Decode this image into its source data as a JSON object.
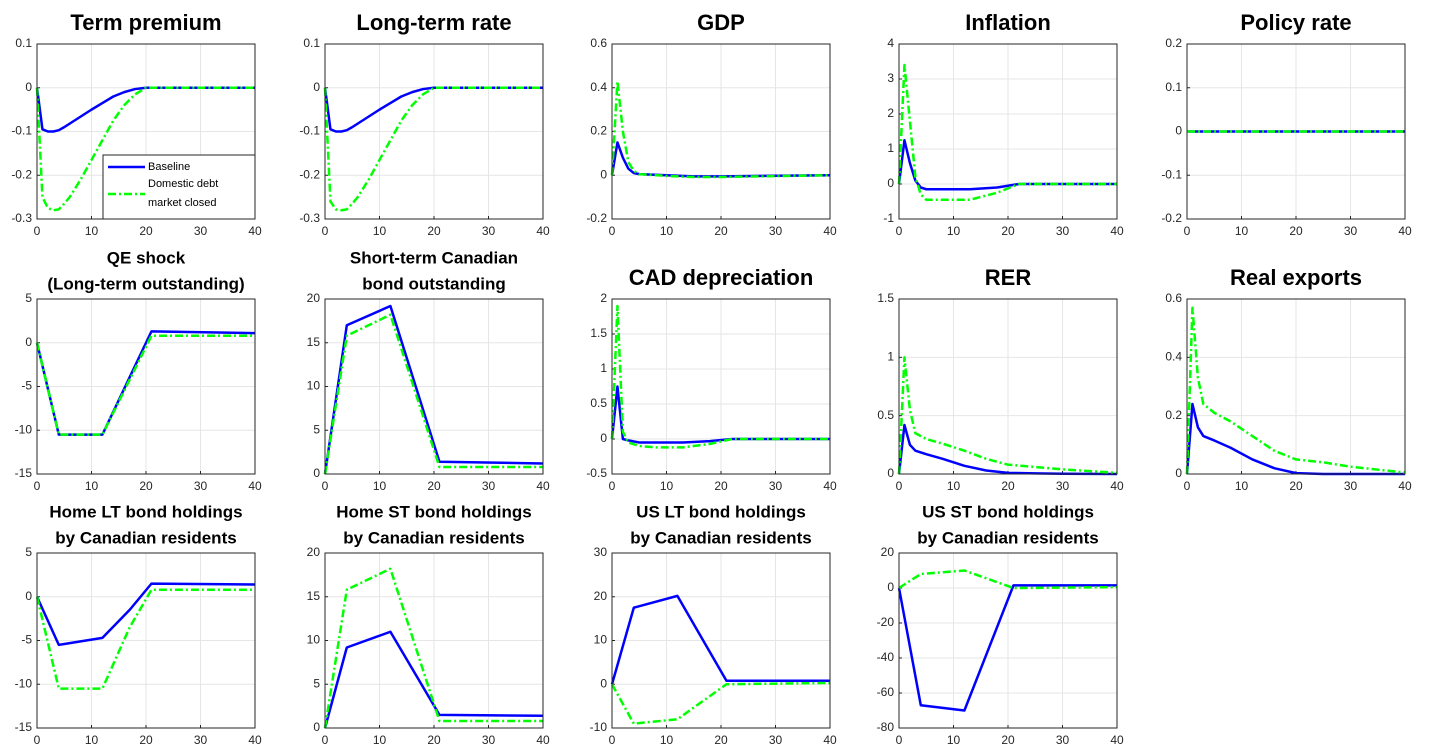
{
  "chart_data": [
    {
      "type": "line",
      "title": [
        "Term premium"
      ],
      "x": [
        0,
        1,
        2,
        3,
        4,
        5,
        6,
        8,
        10,
        12,
        14,
        16,
        18,
        20,
        40
      ],
      "xlim": [
        0,
        40
      ],
      "xticks": [
        0,
        10,
        20,
        30,
        40
      ],
      "ylim": [
        -0.3,
        0.1
      ],
      "yticks": [
        -0.3,
        -0.2,
        -0.1,
        0,
        0.1
      ],
      "grid": true,
      "legend": "lower right",
      "series": [
        {
          "name": "Baseline",
          "color": "#0000ff",
          "style": "solid",
          "values": [
            0,
            -0.095,
            -0.1,
            -0.1,
            -0.097,
            -0.09,
            -0.082,
            -0.066,
            -0.05,
            -0.035,
            -0.02,
            -0.01,
            -0.003,
            0,
            0
          ]
        },
        {
          "name": "Domestic debt market closed",
          "color": "#00ff00",
          "style": "dashdot",
          "values": [
            0,
            -0.25,
            -0.275,
            -0.28,
            -0.278,
            -0.265,
            -0.25,
            -0.21,
            -0.165,
            -0.12,
            -0.075,
            -0.04,
            -0.015,
            0,
            0
          ]
        }
      ]
    },
    {
      "type": "line",
      "title": [
        "Long-term rate"
      ],
      "x": [
        0,
        1,
        2,
        3,
        4,
        5,
        6,
        8,
        10,
        12,
        14,
        16,
        18,
        20,
        40
      ],
      "xlim": [
        0,
        40
      ],
      "xticks": [
        0,
        10,
        20,
        30,
        40
      ],
      "ylim": [
        -0.3,
        0.1
      ],
      "yticks": [
        -0.3,
        -0.2,
        -0.1,
        0,
        0.1
      ],
      "grid": true,
      "series": [
        {
          "color": "#0000ff",
          "style": "solid",
          "values": [
            0,
            -0.095,
            -0.1,
            -0.1,
            -0.097,
            -0.09,
            -0.082,
            -0.066,
            -0.05,
            -0.035,
            -0.02,
            -0.01,
            -0.003,
            0,
            0
          ]
        },
        {
          "color": "#00ff00",
          "style": "dashdot",
          "values": [
            0,
            -0.26,
            -0.278,
            -0.28,
            -0.278,
            -0.265,
            -0.25,
            -0.21,
            -0.165,
            -0.12,
            -0.075,
            -0.04,
            -0.015,
            0,
            0
          ]
        }
      ]
    },
    {
      "type": "line",
      "title": [
        "GDP"
      ],
      "x": [
        0,
        1,
        2,
        3,
        4,
        5,
        10,
        15,
        20,
        40
      ],
      "xlim": [
        0,
        40
      ],
      "xticks": [
        0,
        10,
        20,
        30,
        40
      ],
      "ylim": [
        -0.2,
        0.6
      ],
      "yticks": [
        -0.2,
        0,
        0.2,
        0.4,
        0.6
      ],
      "grid": true,
      "series": [
        {
          "color": "#0000ff",
          "style": "solid",
          "values": [
            0,
            0.15,
            0.08,
            0.03,
            0.01,
            0.005,
            0,
            -0.005,
            -0.005,
            0
          ]
        },
        {
          "color": "#00ff00",
          "style": "dashdot",
          "values": [
            0,
            0.43,
            0.2,
            0.06,
            0.02,
            0.005,
            -0.003,
            -0.008,
            -0.008,
            0
          ]
        }
      ]
    },
    {
      "type": "line",
      "title": [
        "Inflation"
      ],
      "x": [
        0,
        1,
        2,
        3,
        4,
        5,
        8,
        13,
        18,
        22,
        40
      ],
      "xlim": [
        0,
        40
      ],
      "xticks": [
        0,
        10,
        20,
        30,
        40
      ],
      "ylim": [
        -1,
        4
      ],
      "yticks": [
        -1,
        0,
        1,
        2,
        3,
        4
      ],
      "grid": true,
      "series": [
        {
          "color": "#0000ff",
          "style": "solid",
          "values": [
            0,
            1.25,
            0.6,
            0.1,
            -0.1,
            -0.15,
            -0.15,
            -0.15,
            -0.1,
            0,
            0
          ]
        },
        {
          "color": "#00ff00",
          "style": "dashdot",
          "values": [
            0,
            3.4,
            1.8,
            0.2,
            -0.3,
            -0.45,
            -0.45,
            -0.45,
            -0.25,
            0,
            0
          ]
        }
      ]
    },
    {
      "type": "line",
      "title": [
        "Policy rate"
      ],
      "x": [
        0,
        40
      ],
      "xlim": [
        0,
        40
      ],
      "xticks": [
        0,
        10,
        20,
        30,
        40
      ],
      "ylim": [
        -0.2,
        0.2
      ],
      "yticks": [
        -0.2,
        -0.1,
        0,
        0.1,
        0.2
      ],
      "grid": true,
      "series": [
        {
          "color": "#0000ff",
          "style": "solid",
          "values": [
            0,
            0
          ]
        },
        {
          "color": "#00ff00",
          "style": "dashdot",
          "values": [
            0,
            0
          ]
        }
      ]
    },
    {
      "type": "line",
      "title": [
        "QE shock",
        "(Long-term outstanding)"
      ],
      "x": [
        0,
        4,
        12,
        21,
        40
      ],
      "xlim": [
        0,
        40
      ],
      "xticks": [
        0,
        10,
        20,
        30,
        40
      ],
      "ylim": [
        -15,
        5
      ],
      "yticks": [
        -15,
        -10,
        -5,
        0,
        5
      ],
      "grid": true,
      "series": [
        {
          "color": "#0000ff",
          "style": "solid",
          "values": [
            0,
            -10.5,
            -10.5,
            1.3,
            1.1
          ]
        },
        {
          "color": "#00ff00",
          "style": "dashdot",
          "values": [
            0,
            -10.5,
            -10.5,
            0.8,
            0.8
          ]
        }
      ]
    },
    {
      "type": "line",
      "title": [
        "Short-term Canadian",
        "bond outstanding"
      ],
      "x": [
        0,
        4,
        12,
        21,
        40
      ],
      "xlim": [
        0,
        40
      ],
      "xticks": [
        0,
        10,
        20,
        30,
        40
      ],
      "ylim": [
        0,
        20
      ],
      "yticks": [
        0,
        5,
        10,
        15,
        20
      ],
      "grid": true,
      "series": [
        {
          "color": "#0000ff",
          "style": "solid",
          "values": [
            0,
            17,
            19.2,
            1.4,
            1.2
          ]
        },
        {
          "color": "#00ff00",
          "style": "dashdot",
          "values": [
            0,
            15.8,
            18.2,
            0.8,
            0.8
          ]
        }
      ]
    },
    {
      "type": "line",
      "title": [
        "CAD depreciation"
      ],
      "x": [
        0,
        1,
        2,
        3,
        5,
        8,
        13,
        18,
        22,
        40
      ],
      "xlim": [
        0,
        40
      ],
      "xticks": [
        0,
        10,
        20,
        30,
        40
      ],
      "ylim": [
        -0.5,
        2
      ],
      "yticks": [
        -0.5,
        0,
        0.5,
        1,
        1.5,
        2
      ],
      "grid": true,
      "series": [
        {
          "color": "#0000ff",
          "style": "solid",
          "values": [
            0,
            0.75,
            0,
            -0.02,
            -0.05,
            -0.05,
            -0.05,
            -0.03,
            0,
            0
          ]
        },
        {
          "color": "#00ff00",
          "style": "dashdot",
          "values": [
            0,
            1.9,
            0.1,
            -0.05,
            -0.1,
            -0.12,
            -0.12,
            -0.07,
            0,
            0
          ]
        }
      ]
    },
    {
      "type": "line",
      "title": [
        "RER"
      ],
      "x": [
        0,
        1,
        2,
        3,
        5,
        8,
        12,
        16,
        20,
        25,
        30,
        40
      ],
      "xlim": [
        0,
        40
      ],
      "xticks": [
        0,
        10,
        20,
        30,
        40
      ],
      "ylim": [
        0,
        1.5
      ],
      "yticks": [
        0,
        0.5,
        1,
        1.5
      ],
      "grid": true,
      "series": [
        {
          "color": "#0000ff",
          "style": "solid",
          "values": [
            0,
            0.42,
            0.25,
            0.2,
            0.17,
            0.13,
            0.07,
            0.03,
            0.01,
            0.005,
            0.002,
            0
          ]
        },
        {
          "color": "#00ff00",
          "style": "dashdot",
          "values": [
            0,
            1.0,
            0.55,
            0.35,
            0.3,
            0.26,
            0.2,
            0.13,
            0.08,
            0.06,
            0.04,
            0.01
          ]
        }
      ]
    },
    {
      "type": "line",
      "title": [
        "Real exports"
      ],
      "x": [
        0,
        1,
        2,
        3,
        5,
        8,
        12,
        16,
        20,
        25,
        30,
        40
      ],
      "xlim": [
        0,
        40
      ],
      "xticks": [
        0,
        10,
        20,
        30,
        40
      ],
      "ylim": [
        0,
        0.6
      ],
      "yticks": [
        0,
        0.2,
        0.4,
        0.6
      ],
      "grid": true,
      "series": [
        {
          "color": "#0000ff",
          "style": "solid",
          "values": [
            0,
            0.24,
            0.16,
            0.13,
            0.115,
            0.09,
            0.05,
            0.02,
            0.003,
            0,
            0,
            0
          ]
        },
        {
          "color": "#00ff00",
          "style": "dashdot",
          "values": [
            0,
            0.57,
            0.33,
            0.24,
            0.21,
            0.18,
            0.13,
            0.08,
            0.05,
            0.04,
            0.025,
            0.005
          ]
        }
      ]
    },
    {
      "type": "line",
      "title": [
        "Home LT bond holdings",
        "by Canadian residents"
      ],
      "x": [
        0,
        4,
        12,
        17,
        21,
        40
      ],
      "xlim": [
        0,
        40
      ],
      "xticks": [
        0,
        10,
        20,
        30,
        40
      ],
      "ylim": [
        -15,
        5
      ],
      "yticks": [
        -15,
        -10,
        -5,
        0,
        5
      ],
      "grid": true,
      "series": [
        {
          "color": "#0000ff",
          "style": "solid",
          "values": [
            0,
            -5.5,
            -4.7,
            -1.5,
            1.5,
            1.4
          ]
        },
        {
          "color": "#00ff00",
          "style": "dashdot",
          "values": [
            0,
            -10.5,
            -10.5,
            -3.5,
            0.8,
            0.8
          ]
        }
      ]
    },
    {
      "type": "line",
      "title": [
        "Home ST bond holdings",
        "by Canadian residents"
      ],
      "x": [
        0,
        4,
        12,
        21,
        40
      ],
      "xlim": [
        0,
        40
      ],
      "xticks": [
        0,
        10,
        20,
        30,
        40
      ],
      "ylim": [
        0,
        20
      ],
      "yticks": [
        0,
        5,
        10,
        15,
        20
      ],
      "grid": true,
      "series": [
        {
          "color": "#0000ff",
          "style": "solid",
          "values": [
            0,
            9.2,
            11,
            1.5,
            1.4
          ]
        },
        {
          "color": "#00ff00",
          "style": "dashdot",
          "values": [
            0,
            15.8,
            18.2,
            0.8,
            0.8
          ]
        }
      ]
    },
    {
      "type": "line",
      "title": [
        "US LT bond holdings",
        "by Canadian residents"
      ],
      "x": [
        0,
        4,
        12,
        21,
        40
      ],
      "xlim": [
        0,
        40
      ],
      "xticks": [
        0,
        10,
        20,
        30,
        40
      ],
      "ylim": [
        -10,
        30
      ],
      "yticks": [
        -10,
        0,
        10,
        20,
        30
      ],
      "grid": true,
      "series": [
        {
          "color": "#0000ff",
          "style": "solid",
          "values": [
            0,
            17.5,
            20.2,
            0.8,
            0.8
          ]
        },
        {
          "color": "#00ff00",
          "style": "dashdot",
          "values": [
            0,
            -9,
            -8,
            0,
            0.3
          ]
        }
      ]
    },
    {
      "type": "line",
      "title": [
        "US ST bond holdings",
        "by Canadian residents"
      ],
      "x": [
        0,
        4,
        12,
        21,
        40
      ],
      "xlim": [
        0,
        40
      ],
      "xticks": [
        0,
        10,
        20,
        30,
        40
      ],
      "ylim": [
        -80,
        20
      ],
      "yticks": [
        -80,
        -60,
        -40,
        -20,
        0,
        20
      ],
      "grid": true,
      "series": [
        {
          "color": "#0000ff",
          "style": "solid",
          "values": [
            0,
            -67,
            -70,
            1.5,
            1.5
          ]
        },
        {
          "color": "#00ff00",
          "style": "dashdot",
          "values": [
            0,
            8,
            10,
            0,
            0.5
          ]
        }
      ]
    }
  ]
}
